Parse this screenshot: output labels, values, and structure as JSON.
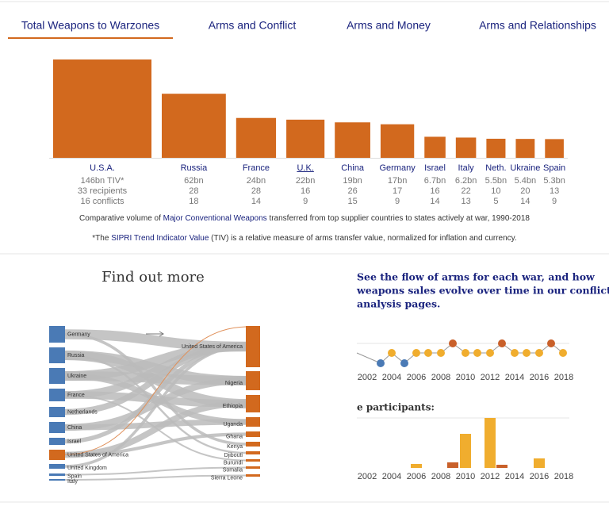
{
  "tabs": {
    "items": [
      "Total Weapons to Warzones",
      "Arms and Conflict",
      "Arms and Money",
      "Arms and Relationships"
    ],
    "active": 0
  },
  "bar_chart": {
    "type": "bar",
    "scale": "sqrt",
    "color": "#d2691e",
    "categories": [
      "U.S.A.",
      "Russia",
      "France",
      "U.K.",
      "China",
      "Germany",
      "Israel",
      "Italy",
      "Neth.",
      "Ukraine",
      "Spain"
    ],
    "values": [
      146,
      62,
      24,
      22,
      19,
      17,
      6.7,
      6.2,
      5.5,
      5.4,
      5.3
    ],
    "value_labels": [
      "146bn TIV*",
      "62bn",
      "24bn",
      "22bn",
      "19bn",
      "17bn",
      "6.7bn",
      "6.2bn",
      "5.5bn",
      "5.4bn",
      "5.3bn"
    ],
    "recipients": [
      "33 recipients",
      "28",
      "28",
      "16",
      "26",
      "17",
      "16",
      "22",
      "10",
      "20",
      "13"
    ],
    "conflicts": [
      "16 conflicts",
      "18",
      "14",
      "9",
      "15",
      "9",
      "14",
      "13",
      "5",
      "14",
      "9"
    ]
  },
  "caption": {
    "before": "Comparative volume of ",
    "link": "Major Conventional Weapons",
    "after": " transferred from top supplier countries to states actively at war, 1990-2018"
  },
  "footnote": {
    "before": "*The ",
    "link": "SIPRI Trend Indicator Value",
    "after": " (TIV) is a relative measure of arms transfer value, normalized for inflation and currency."
  },
  "find_out_more": {
    "title": "Find out more",
    "sankey": {
      "suppliers": [
        "Germany",
        "Russia",
        "Ukraine",
        "France",
        "Netherlands",
        "China",
        "Israel",
        "United States of America",
        "United Kingdom",
        "Spain",
        "Italy"
      ],
      "recipients": [
        "United States of America",
        "Nigeria",
        "Ethiopia",
        "Uganda",
        "Ghana",
        "Kenya",
        "Djibouti",
        "Burundi",
        "Somalia",
        "Sierra Leone"
      ]
    }
  },
  "conflict_promo": {
    "text": [
      "See the flow of arms for each war, and how",
      "weapons sales evolve over time in our conflict",
      "analysis pages."
    ],
    "participants_label": "e participants:",
    "years": [
      2002,
      2004,
      2006,
      2008,
      2010,
      2012,
      2014,
      2016,
      2018
    ]
  }
}
